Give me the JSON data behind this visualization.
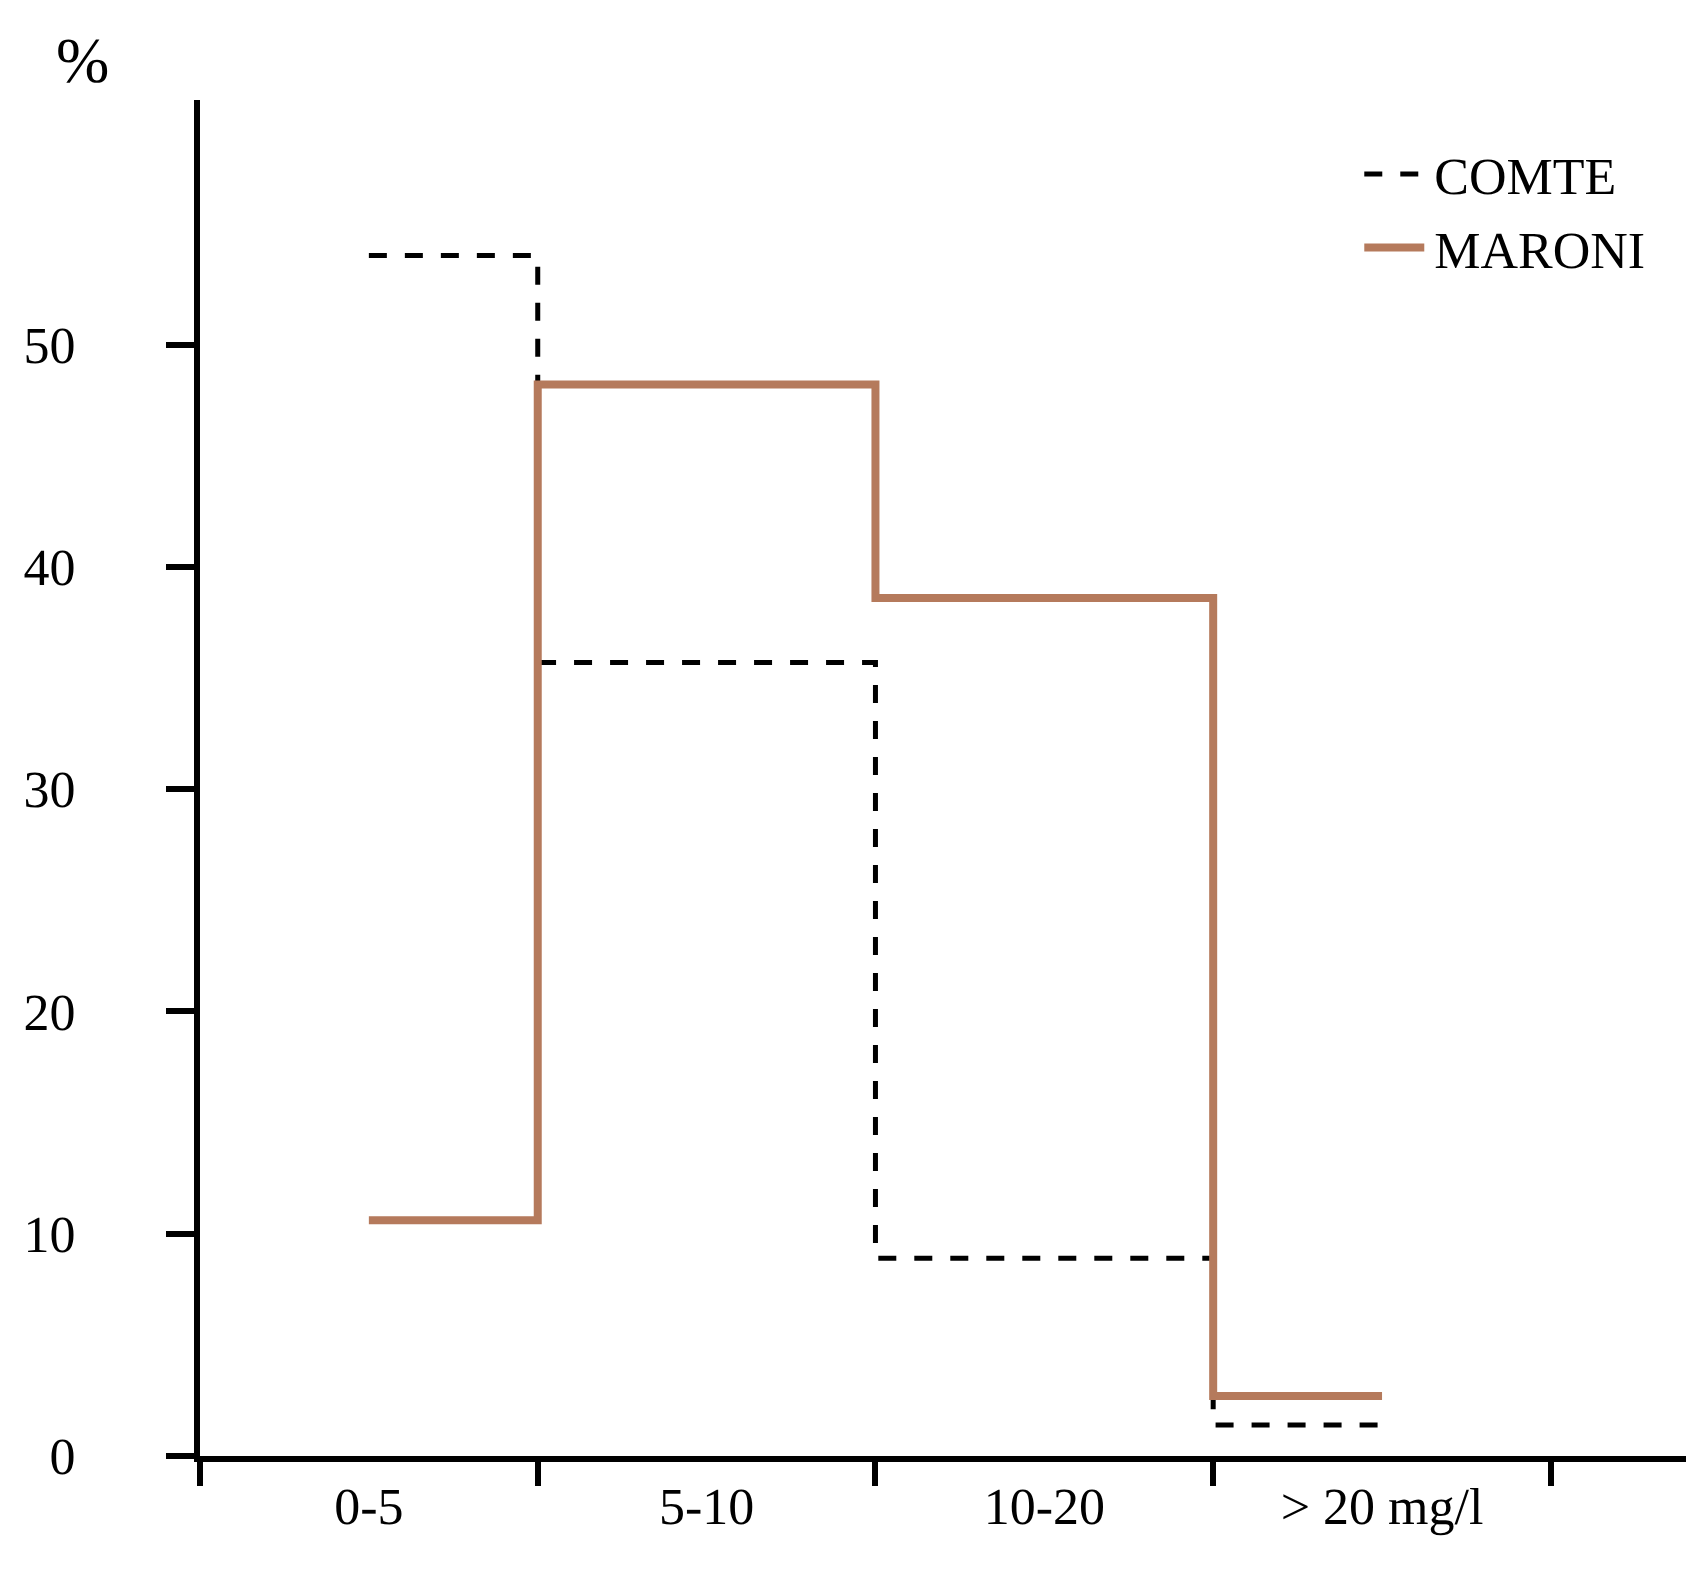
{
  "chart_data": {
    "type": "step",
    "ylabel": "%",
    "categories": [
      "0-5",
      "5-10",
      "10-20",
      "> 20 mg/l"
    ],
    "series": [
      {
        "name": "COMTE",
        "color": "#000000",
        "line_style": "dashed",
        "values": [
          54,
          35.7,
          8.9,
          1.4
        ]
      },
      {
        "name": "MARONI",
        "color": "#b57a5c",
        "line_style": "solid",
        "values": [
          10.6,
          48.2,
          38.6,
          2.7
        ]
      }
    ],
    "ylim": [
      0,
      61
    ],
    "yticks": [
      0,
      10,
      20,
      30,
      40,
      50
    ],
    "legend": "top right",
    "marker": "none"
  }
}
